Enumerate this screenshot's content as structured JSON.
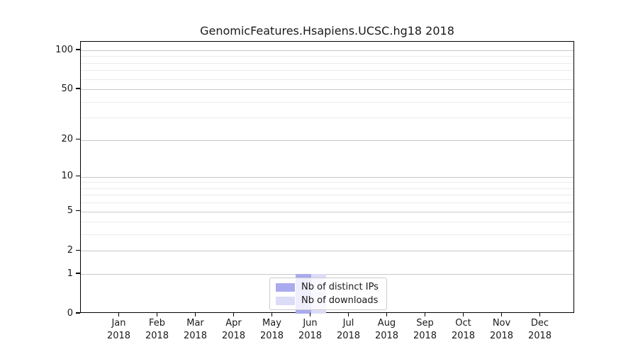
{
  "title": "GenomicFeatures.Hsapiens.UCSC.hg18 2018",
  "chart_data": {
    "type": "bar",
    "title": "GenomicFeatures.Hsapiens.UCSC.hg18 2018",
    "categories": [
      "Jan 2018",
      "Feb 2018",
      "Mar 2018",
      "Apr 2018",
      "May 2018",
      "Jun 2018",
      "Jul 2018",
      "Aug 2018",
      "Sep 2018",
      "Oct 2018",
      "Nov 2018",
      "Dec 2018"
    ],
    "series": [
      {
        "name": "Nb of distinct IPs",
        "color": "#aaaaee",
        "values": [
          0,
          0,
          0,
          0,
          0,
          1,
          0,
          0,
          0,
          0,
          0,
          0
        ]
      },
      {
        "name": "Nb of downloads",
        "color": "#dcdcf8",
        "values": [
          0,
          0,
          0,
          0,
          0,
          1,
          0,
          0,
          0,
          0,
          0,
          0
        ]
      }
    ],
    "xlabel": "",
    "ylabel": "",
    "yscale": "log1p",
    "ylim": [
      0,
      117
    ],
    "yticks": [
      0,
      1,
      2,
      5,
      10,
      20,
      50,
      100
    ],
    "minor_yticks": [
      3,
      4,
      6,
      7,
      8,
      9,
      30,
      40,
      60,
      70,
      80,
      90
    ],
    "grid": "horizontal",
    "legend_position": "lower center inside"
  },
  "legend": {
    "items": [
      {
        "label": "Nb of distinct IPs",
        "color": "#aaaaee"
      },
      {
        "label": "Nb of downloads",
        "color": "#dcdcf8"
      }
    ]
  },
  "colors": {
    "major_grid": "#c8c8c8",
    "minor_grid": "#ececec",
    "frame": "#000000",
    "background": "#ffffff",
    "text": "#191919"
  }
}
